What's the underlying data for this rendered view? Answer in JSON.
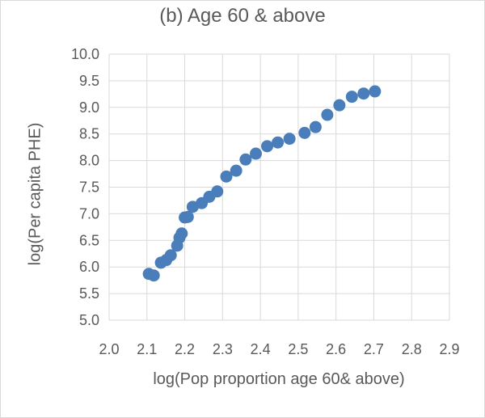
{
  "chart_data": {
    "type": "scatter",
    "title": "(b) Age 60 & above",
    "xlabel": "log(Pop proportion age 60& above)",
    "ylabel": "log(Per capita PHE)",
    "xlim": [
      2.0,
      2.9
    ],
    "ylim": [
      5.0,
      10.0
    ],
    "xticks": [
      "2.0",
      "2.1",
      "2.2",
      "2.3",
      "2.4",
      "2.5",
      "2.6",
      "2.7",
      "2.8",
      "2.9"
    ],
    "yticks": [
      "5.0",
      "5.5",
      "6.0",
      "6.5",
      "7.0",
      "7.5",
      "8.0",
      "8.5",
      "9.0",
      "9.5",
      "10.0"
    ],
    "grid": true,
    "marker_color": "#4a7ebb",
    "x": [
      2.105,
      2.118,
      2.137,
      2.151,
      2.163,
      2.18,
      2.186,
      2.192,
      2.2,
      2.208,
      2.221,
      2.245,
      2.265,
      2.286,
      2.31,
      2.336,
      2.361,
      2.388,
      2.418,
      2.446,
      2.477,
      2.517,
      2.546,
      2.577,
      2.609,
      2.642,
      2.673,
      2.703
    ],
    "y": [
      5.87,
      5.84,
      6.08,
      6.13,
      6.22,
      6.4,
      6.55,
      6.63,
      6.93,
      6.94,
      7.13,
      7.2,
      7.32,
      7.42,
      7.7,
      7.81,
      8.02,
      8.13,
      8.27,
      8.34,
      8.41,
      8.52,
      8.63,
      8.86,
      9.04,
      9.2,
      9.26,
      9.3
    ]
  }
}
